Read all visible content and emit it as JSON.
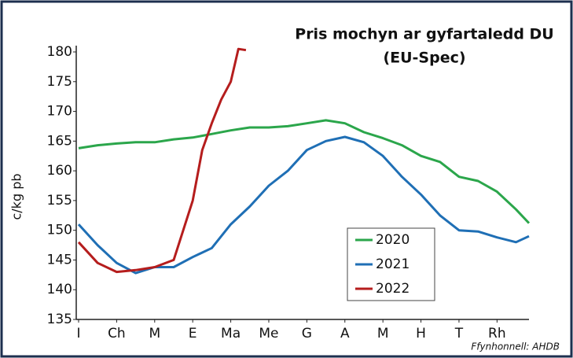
{
  "chart_data": {
    "type": "line",
    "title": "Pris mochyn ar gyfartaledd DU",
    "subtitle": "(EU-Spec)",
    "y_label": "c/kg pb",
    "source": "Ffynhonnell: AHDB",
    "xlim": [
      0,
      11.84
    ],
    "ylim": [
      135,
      180
    ],
    "yticks": [
      135,
      140,
      145,
      150,
      155,
      160,
      165,
      170,
      175,
      180
    ],
    "xticks": [
      {
        "value": 0,
        "label": "I"
      },
      {
        "value": 1,
        "label": "Ch"
      },
      {
        "value": 2,
        "label": "M"
      },
      {
        "value": 3,
        "label": "E"
      },
      {
        "value": 4,
        "label": "Ma"
      },
      {
        "value": 5,
        "label": "Me"
      },
      {
        "value": 6,
        "label": "G"
      },
      {
        "value": 7,
        "label": "A"
      },
      {
        "value": 8,
        "label": "M"
      },
      {
        "value": 9,
        "label": "H"
      },
      {
        "value": 10,
        "label": "T"
      },
      {
        "value": 11,
        "label": "Rh"
      }
    ],
    "legend": "lower-right",
    "series": [
      {
        "name": "2020",
        "color": "#2ba64b",
        "x": [
          0,
          0.5,
          1,
          1.5,
          2,
          2.5,
          3,
          3.5,
          4,
          4.5,
          5,
          5.5,
          6,
          6.5,
          7,
          7.5,
          8,
          8.5,
          9,
          9.5,
          10,
          10.5,
          11,
          11.5,
          11.84
        ],
        "values": [
          163.8,
          164.3,
          164.6,
          164.8,
          164.8,
          165.3,
          165.6,
          166.2,
          166.8,
          167.3,
          167.3,
          167.5,
          168,
          168.5,
          168,
          166.5,
          165.5,
          164.3,
          162.5,
          161.5,
          159,
          158.3,
          156.5,
          153.5,
          151.2
        ]
      },
      {
        "name": "2021",
        "color": "#1f6fb5",
        "x": [
          0,
          0.5,
          1,
          1.5,
          2,
          2.5,
          3,
          3.5,
          4,
          4.5,
          5,
          5.5,
          6,
          6.5,
          7,
          7.5,
          8,
          8.5,
          9,
          9.5,
          10,
          10.5,
          11,
          11.5,
          11.84
        ],
        "values": [
          151,
          147.5,
          144.5,
          142.8,
          143.8,
          143.8,
          145.5,
          147,
          151,
          154,
          157.5,
          160,
          163.5,
          165,
          165.7,
          164.8,
          162.5,
          159,
          156,
          152.5,
          150,
          149.8,
          148.8,
          148,
          149
        ]
      },
      {
        "name": "2022",
        "color": "#b51d1d",
        "x": [
          0,
          0.5,
          1,
          1.5,
          2,
          2.5,
          2.75,
          3,
          3.25,
          3.5,
          3.75,
          4,
          4.2,
          4.4
        ],
        "values": [
          148,
          144.5,
          143,
          143.3,
          143.8,
          145,
          150,
          155,
          163.5,
          168,
          172,
          175,
          180.5,
          180.3
        ]
      }
    ]
  }
}
